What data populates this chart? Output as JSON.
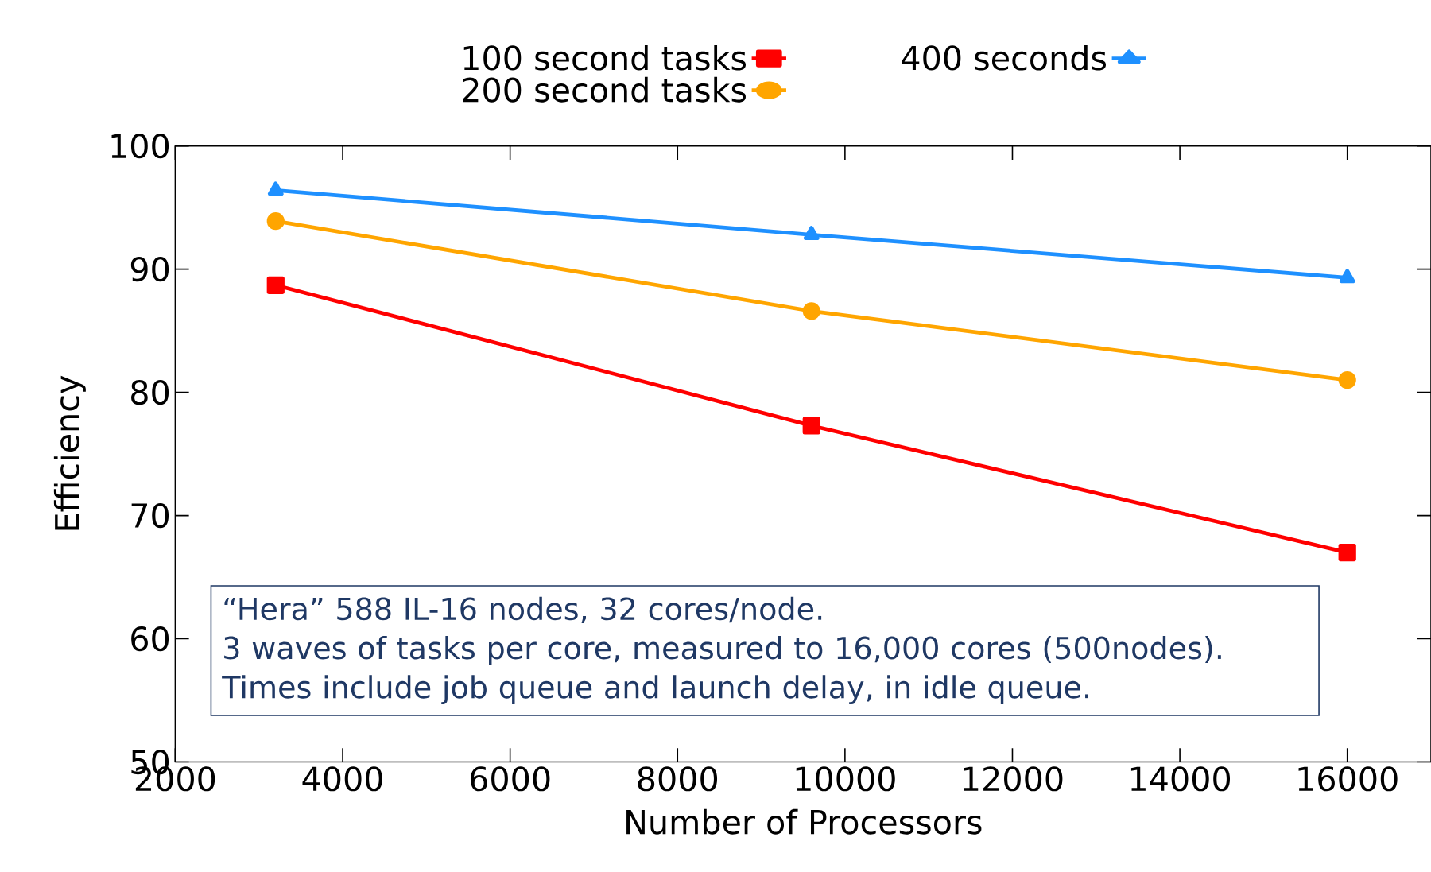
{
  "chart_data": {
    "type": "line",
    "xlabel": "Number of Processors",
    "ylabel": "Efficiency",
    "x": [
      3200,
      9600,
      16000
    ],
    "series": [
      {
        "name": "100 second tasks",
        "color": "#ff0000",
        "marker": "square",
        "values": [
          88.7,
          77.3,
          67.0
        ]
      },
      {
        "name": "200 second tasks",
        "color": "#ffa500",
        "marker": "circle",
        "values": [
          93.9,
          86.6,
          81.0
        ]
      },
      {
        "name": "400 seconds",
        "color": "#1e90ff",
        "marker": "triangle",
        "values": [
          96.4,
          92.8,
          89.3
        ]
      }
    ],
    "xlim": [
      2000,
      17000
    ],
    "xticks": [
      2000,
      4000,
      6000,
      8000,
      10000,
      12000,
      14000,
      16000
    ],
    "ylim": [
      50,
      100
    ],
    "yticks": [
      50,
      60,
      70,
      80,
      90,
      100
    ],
    "grid": false,
    "legend": "top",
    "line_style": "solid",
    "annotations": [
      "“Hera” 588 IL-16 nodes, 32 cores/node.",
      "3 waves of tasks per core,  measured to 16,000 cores (500nodes).",
      "Times include job queue and launch delay, in idle queue."
    ]
  }
}
